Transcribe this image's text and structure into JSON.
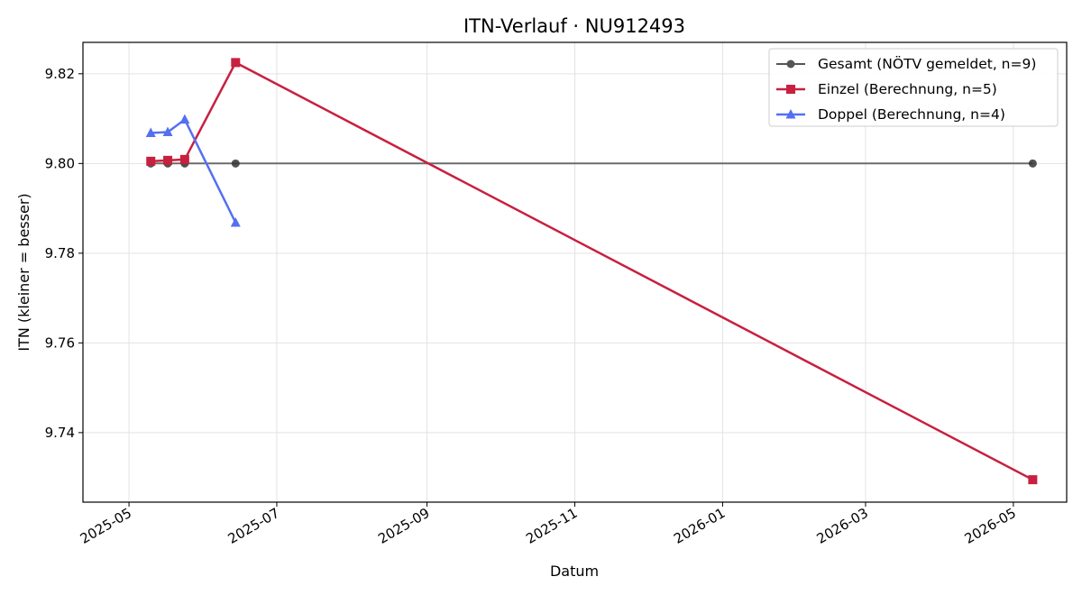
{
  "chart_data": {
    "type": "line",
    "title": "ITN-Verlauf · NU912493",
    "xlabel": "Datum",
    "ylabel": "ITN  (kleiner = besser)",
    "xlim": [
      "2025-04-12",
      "2026-05-23"
    ],
    "ylim": [
      9.7245,
      9.827
    ],
    "x_ticks": [
      "2025-05-01",
      "2025-07-01",
      "2025-09-01",
      "2025-11-01",
      "2026-01-01",
      "2026-03-01",
      "2026-05-01"
    ],
    "x_tick_labels": [
      "2025-05",
      "2025-07",
      "2025-09",
      "2025-11",
      "2026-01",
      "2026-03",
      "2026-05"
    ],
    "y_ticks": [
      9.74,
      9.76,
      9.78,
      9.8,
      9.82
    ],
    "y_tick_labels": [
      "9.74",
      "9.76",
      "9.78",
      "9.80",
      "9.82"
    ],
    "grid": true,
    "legend_position": "top-right",
    "series": [
      {
        "name": "Gesamt (NÖTV gemeldet, n=9)",
        "color": "#555555",
        "marker": "circle",
        "points": [
          {
            "x": "2025-05-10",
            "y": 9.8
          },
          {
            "x": "2025-05-17",
            "y": 9.8
          },
          {
            "x": "2025-05-24",
            "y": 9.8
          },
          {
            "x": "2025-06-14",
            "y": 9.8
          },
          {
            "x": "2026-05-09",
            "y": 9.8
          }
        ]
      },
      {
        "name": "Einzel (Berechnung, n=5)",
        "color": "#c8203f",
        "marker": "square",
        "points": [
          {
            "x": "2025-05-10",
            "y": 9.8005
          },
          {
            "x": "2025-05-17",
            "y": 9.8007
          },
          {
            "x": "2025-05-24",
            "y": 9.8009
          },
          {
            "x": "2025-06-14",
            "y": 9.8225
          },
          {
            "x": "2026-05-09",
            "y": 9.7295
          }
        ]
      },
      {
        "name": "Doppel (Berechnung, n=4)",
        "color": "#5470f0",
        "marker": "triangle",
        "points": [
          {
            "x": "2025-05-10",
            "y": 9.8068
          },
          {
            "x": "2025-05-17",
            "y": 9.807
          },
          {
            "x": "2025-05-24",
            "y": 9.8098
          },
          {
            "x": "2025-06-14",
            "y": 9.7868
          }
        ]
      }
    ]
  }
}
